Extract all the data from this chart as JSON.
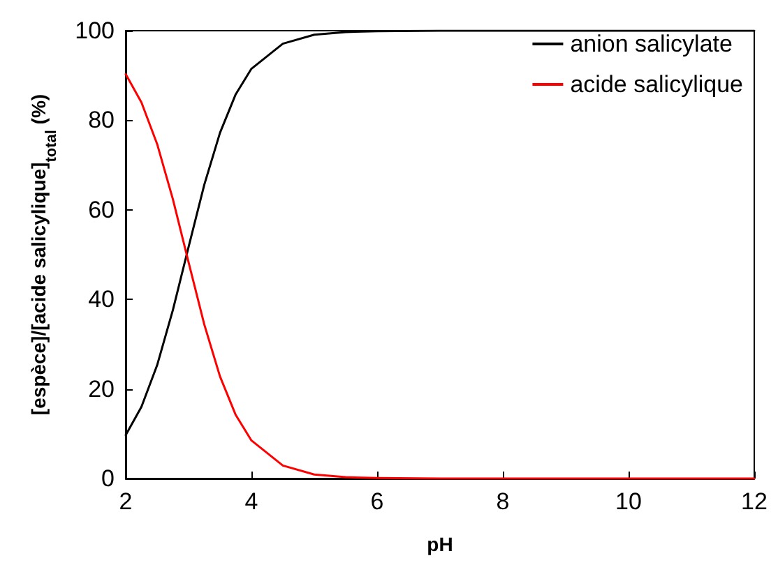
{
  "chart_data": {
    "type": "line",
    "xlabel": "pH",
    "ylabel": "[espèce]/[acide salicylique]$_{total}$ (%)",
    "x": [
      2,
      2.25,
      2.5,
      2.75,
      3,
      3.25,
      3.5,
      3.75,
      4,
      4.5,
      5,
      5.5,
      6,
      7,
      8,
      10,
      12
    ],
    "series": [
      {
        "name": "anion salicylate",
        "color": "#000000",
        "values": [
          9.7,
          16.0,
          25.3,
          37.6,
          51.7,
          65.6,
          77.2,
          85.8,
          91.5,
          97.1,
          99.1,
          99.7,
          99.9,
          100,
          100,
          100,
          100
        ]
      },
      {
        "name": "acide salicylique",
        "color": "#ff0000",
        "values": [
          90.3,
          84.0,
          74.7,
          62.4,
          48.3,
          34.4,
          22.8,
          14.2,
          8.5,
          2.9,
          0.9,
          0.3,
          0.1,
          0,
          0,
          0,
          0
        ]
      }
    ],
    "xlim": [
      2,
      12
    ],
    "xticks": [
      2,
      4,
      6,
      8,
      10,
      12
    ],
    "ylim": [
      0,
      100
    ],
    "yticks": [
      0,
      20,
      40,
      60,
      80,
      100
    ],
    "grid": false,
    "legend": "top right",
    "marker": "none",
    "line_style": "solid"
  }
}
